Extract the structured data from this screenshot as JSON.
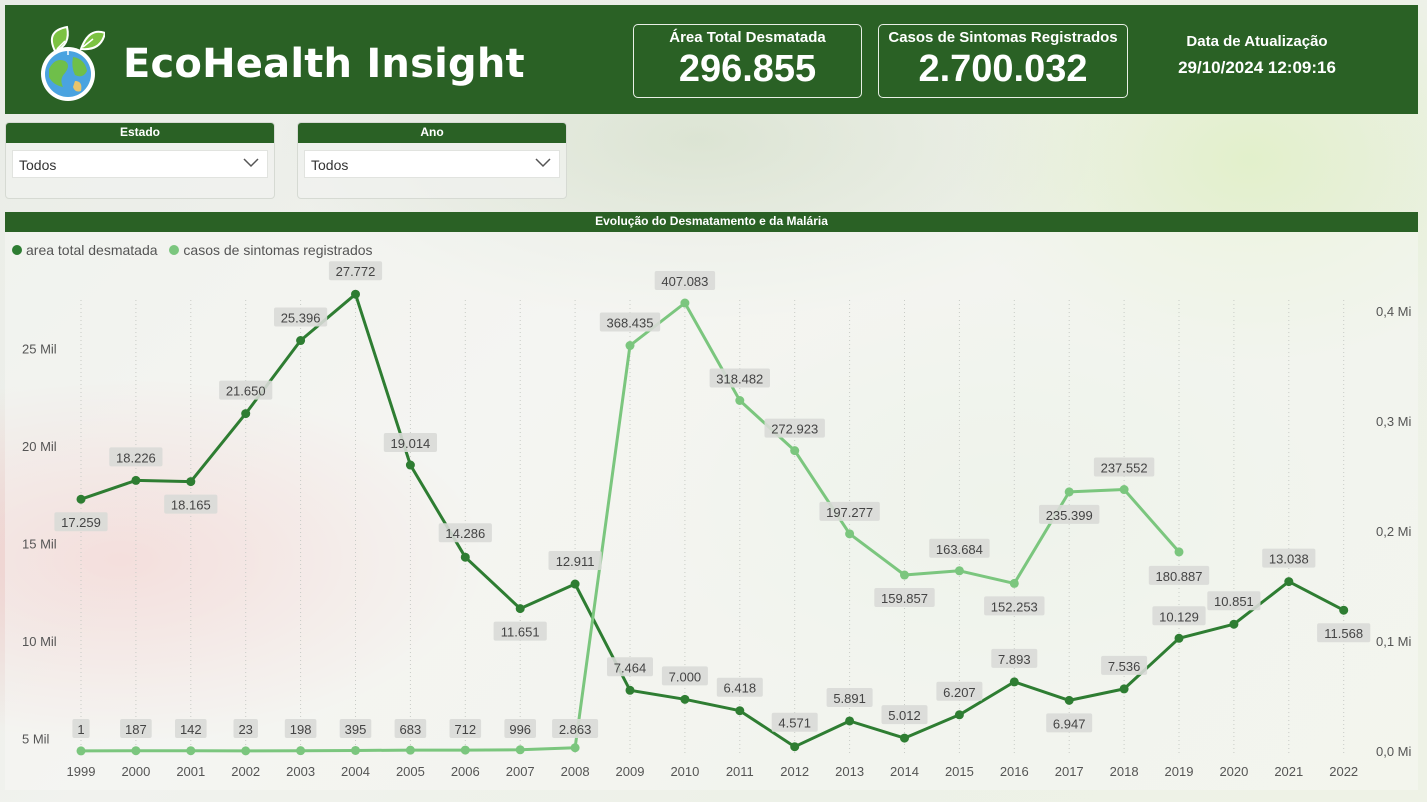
{
  "app": {
    "title": "EcoHealth Insight"
  },
  "kpis": {
    "area": {
      "label": "Área Total Desmatada",
      "value": "296.855"
    },
    "cases": {
      "label": "Casos de Sintomas Registrados",
      "value": "2.700.032"
    },
    "update": {
      "label": "Data de Atualização",
      "value": "29/10/2024 12:09:16"
    }
  },
  "filters": {
    "estado": {
      "label": "Estado",
      "value": "Todos"
    },
    "ano": {
      "label": "Ano",
      "value": "Todos"
    }
  },
  "colors": {
    "brand": "#2a6125",
    "series_area": "#2e7d32",
    "series_cases": "#7bc67e"
  },
  "chart_data": {
    "type": "line",
    "title": "Evolução do Desmatamento e da Malária",
    "categories": [
      "1999",
      "2000",
      "2001",
      "2002",
      "2003",
      "2004",
      "2005",
      "2006",
      "2007",
      "2008",
      "2009",
      "2010",
      "2011",
      "2012",
      "2013",
      "2014",
      "2015",
      "2016",
      "2017",
      "2018",
      "2019",
      "2020",
      "2021",
      "2022"
    ],
    "left_axis": {
      "ticks": [
        "5 Mil",
        "10 Mil",
        "15 Mil",
        "20 Mil",
        "25 Mil"
      ],
      "tick_values": [
        5000,
        10000,
        15000,
        20000,
        25000
      ],
      "range": [
        4300,
        28500
      ]
    },
    "right_axis": {
      "ticks": [
        "0,0 Mi",
        "0,1 Mi",
        "0,2 Mi",
        "0,3 Mi",
        "0,4 Mi"
      ],
      "tick_values": [
        0,
        100000,
        200000,
        300000,
        400000
      ],
      "range": [
        -1000,
        428000
      ]
    },
    "legend_position": "top-left",
    "series": [
      {
        "name": "area total desmatada",
        "axis": "left",
        "values": [
          17259,
          18226,
          18165,
          21650,
          25396,
          27772,
          19014,
          14286,
          11651,
          12911,
          7464,
          7000,
          6418,
          4571,
          5891,
          5012,
          6207,
          7893,
          6947,
          7536,
          10129,
          10851,
          13038,
          11568
        ],
        "labels": [
          "17.259",
          "18.226",
          "18.165",
          "21.650",
          "25.396",
          "27.772",
          "19.014",
          "14.286",
          "11.651",
          "12.911",
          "7.464",
          "7.000",
          "6.418",
          "4.571",
          "5.891",
          "5.012",
          "6.207",
          "7.893",
          "6.947",
          "7.536",
          "10.129",
          "10.851",
          "13.038",
          "11.568"
        ]
      },
      {
        "name": "casos de sintomas registrados",
        "axis": "right",
        "values": [
          1,
          187,
          142,
          23,
          198,
          395,
          683,
          712,
          996,
          2863,
          368435,
          407083,
          318482,
          272923,
          197277,
          159857,
          163684,
          152253,
          235399,
          237552,
          180887,
          null,
          null,
          null
        ],
        "labels": [
          "1",
          "187",
          "142",
          "23",
          "198",
          "395",
          "683",
          "712",
          "996",
          "2.863",
          "368.435",
          "407.083",
          "318.482",
          "272.923",
          "197.277",
          "159.857",
          "163.684",
          "152.253",
          "235.399",
          "237.552",
          "180.887",
          "",
          "",
          ""
        ]
      }
    ]
  }
}
